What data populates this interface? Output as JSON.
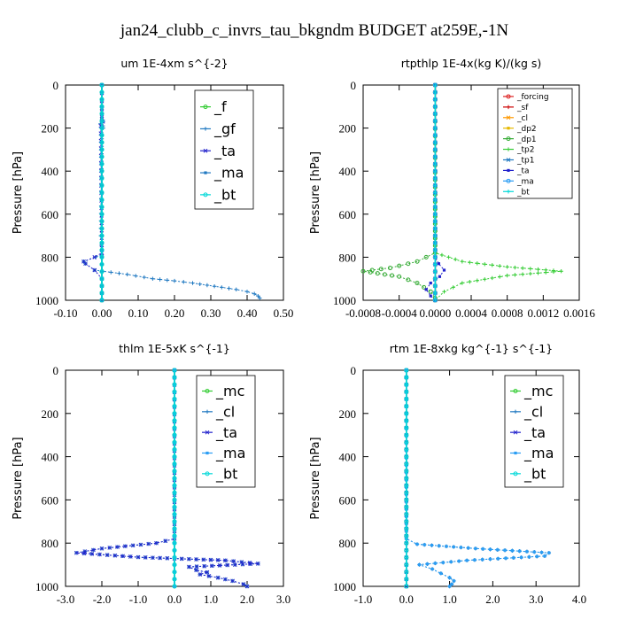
{
  "figure": {
    "title": "jan24_clubb_c_invrs_tau_bkgndm  BUDGET at259E,-1N"
  },
  "chart_data": [
    {
      "type": "line",
      "title": "um   1E-4xm  s^{-2}",
      "ylabel": "Pressure [hPa]",
      "xlim": [
        -0.1,
        0.5
      ],
      "ylim": [
        1000,
        0
      ],
      "xticks": [
        "-0.10",
        "0.00",
        "0.10",
        "0.20",
        "0.30",
        "0.40",
        "0.50"
      ],
      "yticks": [
        "0",
        "200",
        "400",
        "600",
        "800",
        "1000"
      ],
      "legend_position": "top-right",
      "series": [
        {
          "name": "_f",
          "color": "#33cc33",
          "x": [
            0.0,
            0.0
          ],
          "y": [
            0,
            1000
          ]
        },
        {
          "name": "_gf",
          "color": "#1f78c1",
          "x": [
            0.0,
            0.0,
            0.004,
            -0.004,
            0.003,
            0.004,
            0.0,
            -0.003,
            0.0,
            -0.018,
            -0.05,
            -0.045,
            -0.02,
            0.07,
            0.14,
            0.2,
            0.25,
            0.29,
            0.33,
            0.37,
            0.4,
            0.42,
            0.43,
            0.435
          ],
          "y": [
            0,
            150,
            170,
            180,
            190,
            200,
            250,
            700,
            790,
            800,
            820,
            830,
            860,
            880,
            900,
            910,
            920,
            930,
            940,
            950,
            960,
            970,
            980,
            990
          ]
        },
        {
          "name": "_ta",
          "color": "#2222cc",
          "x": [
            0.0,
            0.0,
            0.003,
            -0.003,
            0.0,
            -0.02,
            -0.05,
            -0.045,
            -0.02,
            0.0,
            0.0
          ],
          "y": [
            0,
            150,
            170,
            190,
            780,
            800,
            820,
            830,
            860,
            900,
            1000
          ]
        },
        {
          "name": "_ma",
          "color": "#1f78c1",
          "x": [
            0.0,
            0.0
          ],
          "y": [
            0,
            1000
          ]
        },
        {
          "name": "_bt",
          "color": "#00d8d8",
          "x": [
            0.0,
            0.0
          ],
          "y": [
            0,
            1000
          ]
        }
      ]
    },
    {
      "type": "line",
      "title": "rtpthlp   1E-4x(kg K)/(kg s)",
      "ylabel": "Pressure [hPa]",
      "xlim": [
        -0.0008,
        0.0016
      ],
      "ylim": [
        1000,
        0
      ],
      "xticks": [
        "-0.0008",
        "-0.0004",
        "0.0000",
        "0.0004",
        "0.0008",
        "0.0012",
        "0.0016"
      ],
      "yticks": [
        "0",
        "200",
        "400",
        "600",
        "800",
        "1000"
      ],
      "legend_position": "top-right",
      "series": [
        {
          "name": "_forcing",
          "color": "#dd2222",
          "x": [
            0.0,
            0.0
          ],
          "y": [
            0,
            1000
          ]
        },
        {
          "name": "_sf",
          "color": "#cc0000",
          "x": [
            0.0,
            0.0
          ],
          "y": [
            0,
            1000
          ]
        },
        {
          "name": "_cl",
          "color": "#ff9900",
          "x": [
            0.0,
            0.0
          ],
          "y": [
            0,
            1000
          ]
        },
        {
          "name": "_dp2",
          "color": "#e6b800",
          "x": [
            0.0,
            0.0
          ],
          "y": [
            0,
            1000
          ]
        },
        {
          "name": "_dp1",
          "color": "#33aa33",
          "x": [
            0.0,
            0.0,
            -0.0002,
            -0.0005,
            -0.0008,
            -0.0004,
            -0.0002,
            -5e-05,
            0.0,
            0.0
          ],
          "y": [
            0,
            780,
            820,
            850,
            865,
            890,
            920,
            960,
            990,
            1000
          ]
        },
        {
          "name": "_tp2",
          "color": "#33cc33",
          "x": [
            0.0,
            0.0,
            0.0003,
            0.0008,
            0.0014,
            0.0008,
            0.0003,
            0.0001,
            0.0
          ],
          "y": [
            0,
            780,
            820,
            845,
            865,
            885,
            920,
            960,
            1000
          ]
        },
        {
          "name": "_tp1",
          "color": "#1f78c1",
          "x": [
            0.0,
            0.0
          ],
          "y": [
            0,
            1000
          ]
        },
        {
          "name": "_ta",
          "color": "#2222cc",
          "x": [
            0.0,
            0.0,
            4e-05,
            0.0001,
            5e-05,
            -5e-05,
            -0.0001,
            -5e-05,
            0.0
          ],
          "y": [
            0,
            800,
            830,
            860,
            890,
            920,
            950,
            980,
            1000
          ]
        },
        {
          "name": "_ma",
          "color": "#2a9df4",
          "x": [
            0.0,
            0.0
          ],
          "y": [
            0,
            1000
          ]
        },
        {
          "name": "_bt",
          "color": "#00d8d8",
          "x": [
            0.0,
            0.0
          ],
          "y": [
            0,
            1000
          ]
        }
      ]
    },
    {
      "type": "line",
      "title": "thlm   1E-5xK  s^{-1}",
      "ylabel": "Pressure [hPa]",
      "xlim": [
        -3.0,
        3.0
      ],
      "ylim": [
        1000,
        0
      ],
      "xticks": [
        "-3.0",
        "-2.0",
        "-1.0",
        "0.0",
        "1.0",
        "2.0",
        "3.0"
      ],
      "yticks": [
        "0",
        "200",
        "400",
        "600",
        "800",
        "1000"
      ],
      "legend_position": "top-right",
      "series": [
        {
          "name": "_mc",
          "color": "#33cc33",
          "x": [
            0.0,
            0.0
          ],
          "y": [
            0,
            1000
          ]
        },
        {
          "name": "_cl",
          "color": "#1f78c1",
          "x": [
            0.0,
            0.0,
            -0.5,
            -2.0,
            -2.7,
            -1.0,
            1.4,
            2.3,
            0.4,
            0.6,
            0.9,
            0.7,
            1.2,
            1.6,
            1.9,
            2.0
          ],
          "y": [
            0,
            780,
            800,
            825,
            845,
            865,
            880,
            895,
            910,
            925,
            935,
            945,
            960,
            975,
            990,
            1000
          ]
        },
        {
          "name": "_ta",
          "color": "#2222cc",
          "x": [
            0.0,
            0.0,
            -0.5,
            -2.0,
            -2.7,
            -1.0,
            1.4,
            2.3,
            0.4,
            0.6,
            0.9,
            0.7,
            1.2,
            1.6,
            1.9,
            2.0
          ],
          "y": [
            0,
            780,
            800,
            825,
            845,
            865,
            880,
            895,
            910,
            925,
            935,
            945,
            960,
            975,
            990,
            1000
          ]
        },
        {
          "name": "_ma",
          "color": "#2a9df4",
          "x": [
            0.0,
            0.0
          ],
          "y": [
            0,
            1000
          ]
        },
        {
          "name": "_bt",
          "color": "#00d8d8",
          "x": [
            0.0,
            0.0
          ],
          "y": [
            0,
            1000
          ]
        }
      ]
    },
    {
      "type": "line",
      "title": "rtm   1E-8xkg  kg^{-1}  s^{-1}",
      "ylabel": "Pressure [hPa]",
      "xlim": [
        -1.0,
        4.0
      ],
      "ylim": [
        1000,
        0
      ],
      "xticks": [
        "-1.0",
        "0.0",
        "1.0",
        "2.0",
        "3.0",
        "4.0"
      ],
      "yticks": [
        "0",
        "200",
        "400",
        "600",
        "800",
        "1000"
      ],
      "legend_position": "top-right",
      "series": [
        {
          "name": "_mc",
          "color": "#33cc33",
          "x": [
            0.0,
            0.0
          ],
          "y": [
            0,
            1000
          ]
        },
        {
          "name": "_cl",
          "color": "#1f78c1",
          "x": [
            0.0,
            0.0,
            0.25,
            1.6,
            3.3,
            3.2,
            1.4,
            0.3,
            0.6,
            0.8,
            1.0,
            1.1,
            1.05,
            1.0
          ],
          "y": [
            0,
            780,
            805,
            825,
            845,
            860,
            880,
            900,
            920,
            940,
            960,
            975,
            990,
            1000
          ]
        },
        {
          "name": "_ta",
          "color": "#2222cc",
          "x": [
            0.0,
            0.0
          ],
          "y": [
            0,
            1000
          ]
        },
        {
          "name": "_ma",
          "color": "#2a9df4",
          "x": [
            0.0,
            0.0,
            0.25,
            1.6,
            3.3,
            3.2,
            1.4,
            0.3,
            0.6,
            0.8,
            1.0,
            1.1,
            1.05,
            1.0
          ],
          "y": [
            0,
            780,
            805,
            825,
            845,
            860,
            880,
            900,
            920,
            940,
            960,
            975,
            990,
            1000
          ]
        },
        {
          "name": "_bt",
          "color": "#00d8d8",
          "x": [
            0.0,
            0.0
          ],
          "y": [
            0,
            1000
          ]
        }
      ]
    }
  ]
}
